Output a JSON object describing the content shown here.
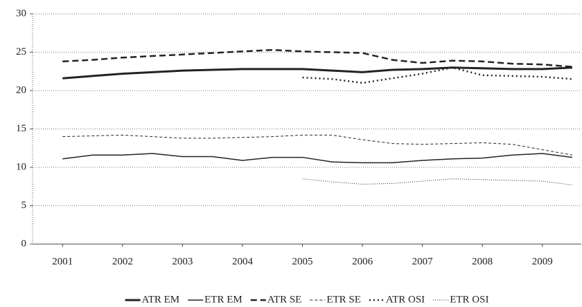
{
  "chart_data": {
    "type": "line",
    "x": [
      2001,
      2001.5,
      2002,
      2002.5,
      2003,
      2003.5,
      2004,
      2004.5,
      2005,
      2005.5,
      2006,
      2006.5,
      2007,
      2007.5,
      2008,
      2008.5,
      2009,
      2009.5
    ],
    "xlim": [
      2000.5,
      2009.65
    ],
    "xticks": [
      2001,
      2002,
      2003,
      2004,
      2005,
      2006,
      2007,
      2008,
      2009
    ],
    "ylim": [
      0,
      30
    ],
    "yticks": [
      0,
      5,
      10,
      15,
      20,
      25,
      30
    ],
    "grid": true,
    "legend": "bottom",
    "series": [
      {
        "name": "ATR EM",
        "color": "#222222",
        "values": [
          21.6,
          21.9,
          22.2,
          22.4,
          22.6,
          22.7,
          22.8,
          22.8,
          22.8,
          22.6,
          22.4,
          22.7,
          22.8,
          23.0,
          22.9,
          22.8,
          22.8,
          23.0
        ]
      },
      {
        "name": "ETR EM",
        "color": "#222222",
        "values": [
          11.1,
          11.6,
          11.6,
          11.8,
          11.4,
          11.4,
          10.9,
          11.3,
          11.3,
          10.7,
          10.6,
          10.6,
          10.9,
          11.1,
          11.2,
          11.6,
          11.8,
          11.3
        ]
      },
      {
        "name": "ATR SE",
        "color": "#222222",
        "values": [
          23.8,
          24.0,
          24.3,
          24.5,
          24.7,
          24.9,
          25.1,
          25.3,
          25.1,
          25.0,
          24.9,
          24.0,
          23.6,
          23.9,
          23.8,
          23.5,
          23.4,
          23.1
        ]
      },
      {
        "name": "ETR SE",
        "color": "#222222",
        "values": [
          14.0,
          14.1,
          14.2,
          14.0,
          13.8,
          13.8,
          13.9,
          14.0,
          14.2,
          14.2,
          13.6,
          13.1,
          13.0,
          13.1,
          13.2,
          13.0,
          12.3,
          11.6
        ]
      },
      {
        "name": "ATR OSI",
        "color": "#222222",
        "values": [
          null,
          null,
          null,
          null,
          null,
          null,
          null,
          null,
          21.7,
          21.5,
          21.0,
          21.6,
          22.2,
          23.0,
          22.0,
          21.9,
          21.8,
          21.5
        ]
      },
      {
        "name": "ETR OSI",
        "color": "#222222",
        "values": [
          null,
          null,
          null,
          null,
          null,
          null,
          null,
          null,
          8.5,
          8.1,
          7.8,
          7.9,
          8.2,
          8.5,
          8.4,
          8.3,
          8.2,
          7.7
        ]
      }
    ]
  }
}
